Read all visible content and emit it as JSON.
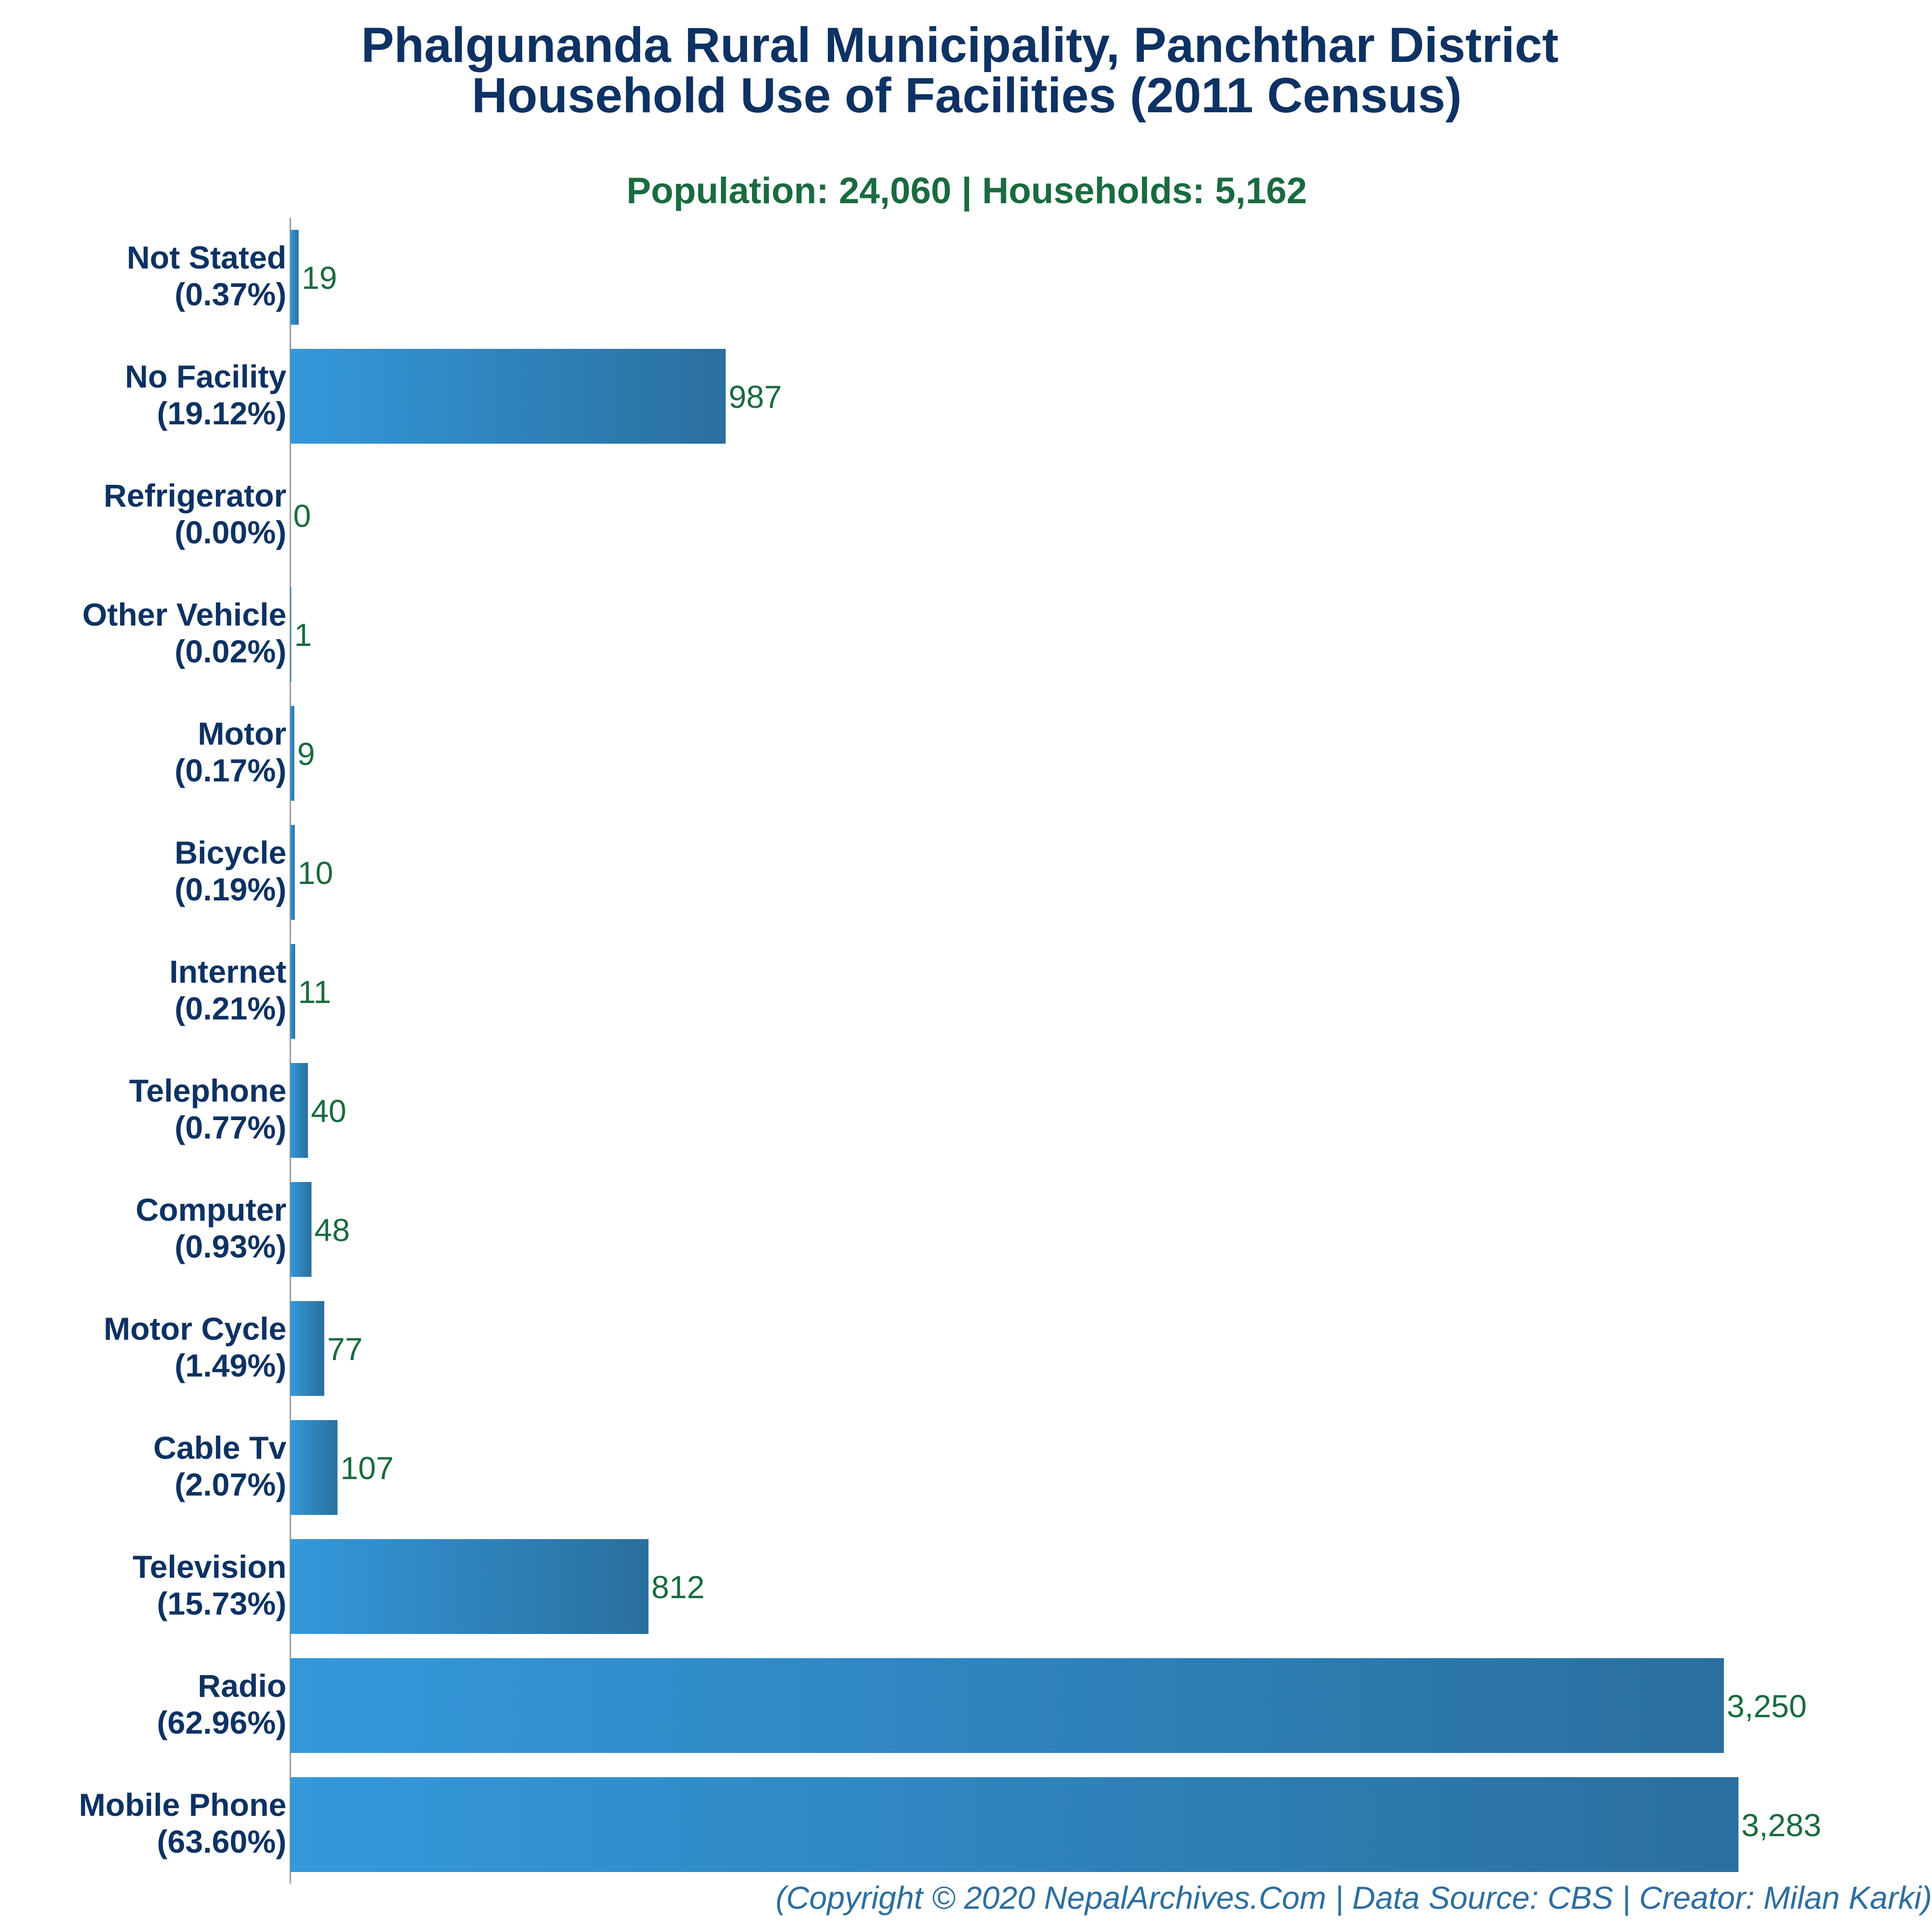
{
  "chart_data": {
    "type": "bar",
    "orientation": "horizontal",
    "title": [
      "Phalgunanda Rural Municipality, Panchthar District",
      "Household Use of Facilities (2011 Census)"
    ],
    "subtitle": "Population: 24,060 | Households: 5,162",
    "footer": "(Copyright © 2020 NepalArchives.Com | Data Source: CBS | Creator: Milan Karki)",
    "categories": [
      "Not Stated",
      "No Facility",
      "Refrigerator",
      "Other Vehicle",
      "Motor",
      "Bicycle",
      "Internet",
      "Telephone",
      "Computer",
      "Motor Cycle",
      "Cable Tv",
      "Television",
      "Radio",
      "Mobile Phone"
    ],
    "percent_labels": [
      "(0.37%)",
      "(19.12%)",
      "(0.00%)",
      "(0.02%)",
      "(0.17%)",
      "(0.19%)",
      "(0.21%)",
      "(0.77%)",
      "(0.93%)",
      "(1.49%)",
      "(2.07%)",
      "(15.73%)",
      "(62.96%)",
      "(63.60%)"
    ],
    "values": [
      19,
      987,
      0,
      1,
      9,
      10,
      11,
      40,
      48,
      77,
      107,
      812,
      3250,
      3283
    ],
    "value_labels": [
      "19",
      "987",
      "0",
      "1",
      "9",
      "10",
      "11",
      "40",
      "48",
      "77",
      "107",
      "812",
      "3,250",
      "3,283"
    ],
    "xlim": [
      0,
      3283
    ],
    "grid": false,
    "legend": "none",
    "colors": {
      "bar_start": "#3498db",
      "bar_end": "#2a6f9e",
      "title": "#0d3263",
      "subtitle": "#1a6b3f",
      "value_text": "#1a6b3f",
      "footer": "#2e6e9e",
      "axis": "#999999"
    }
  }
}
